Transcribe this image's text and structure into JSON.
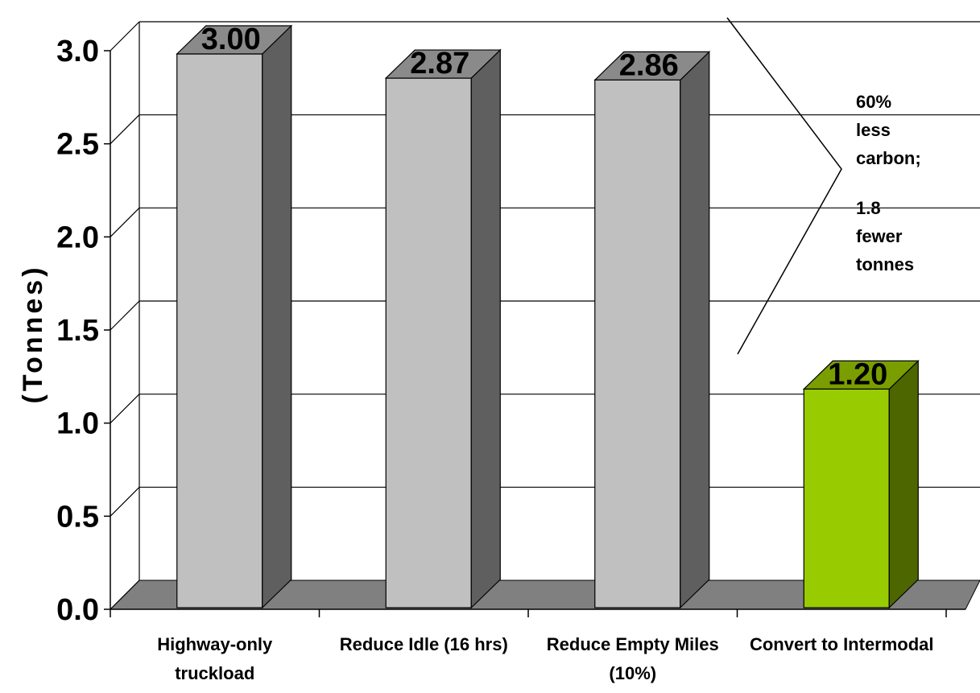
{
  "chart_data": {
    "type": "bar",
    "categories": [
      [
        "Highway-only",
        "truckload"
      ],
      [
        "Reduce Idle (16 hrs)"
      ],
      [
        "Reduce Empty Miles",
        "(10%)"
      ],
      [
        "Convert to Intermodal"
      ]
    ],
    "values": [
      3.0,
      2.87,
      2.86,
      1.2
    ],
    "data_labels": [
      "3.00",
      "2.87",
      "2.86",
      "1.20"
    ],
    "ylabel": "(Tonnes)",
    "ylim": [
      0,
      3.0
    ],
    "yticks": [
      "0.0",
      "0.5",
      "1.0",
      "1.5",
      "2.0",
      "2.5",
      "3.0"
    ],
    "grid": true,
    "three_d": true,
    "bar_colors": [
      "#c0c0c0",
      "#c0c0c0",
      "#c0c0c0",
      "#99cc00"
    ],
    "bar_side_colors": [
      "#5f5f5f",
      "#5f5f5f",
      "#5f5f5f",
      "#4d6600"
    ],
    "bar_top_colors": [
      "#8a8a8a",
      "#8a8a8a",
      "#8a8a8a",
      "#7a9e00"
    ],
    "annotation": {
      "lines": [
        "60%",
        "less",
        "carbon;",
        "1.8",
        "fewer",
        "tonnes"
      ]
    }
  }
}
